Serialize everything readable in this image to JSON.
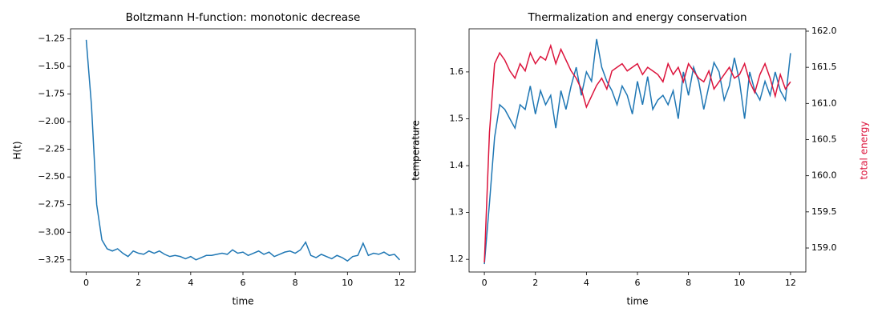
{
  "chart_data": [
    {
      "type": "line",
      "title": "Boltzmann H-function: monotonic decrease",
      "xlabel": "time",
      "ylabel": "H(t)",
      "x": [
        0,
        0.2,
        0.4,
        0.6,
        0.8,
        1,
        1.2,
        1.4,
        1.6,
        1.8,
        2,
        2.2,
        2.4,
        2.6,
        2.8,
        3,
        3.2,
        3.4,
        3.6,
        3.8,
        4,
        4.2,
        4.4,
        4.6,
        4.8,
        5,
        5.2,
        5.4,
        5.6,
        5.8,
        6,
        6.2,
        6.4,
        6.6,
        6.8,
        7,
        7.2,
        7.4,
        7.6,
        7.8,
        8,
        8.2,
        8.4,
        8.6,
        8.8,
        9,
        9.2,
        9.4,
        9.6,
        9.8,
        10,
        10.2,
        10.4,
        10.6,
        10.8,
        11,
        11.2,
        11.4,
        11.6,
        11.8,
        12
      ],
      "series": [
        {
          "name": "H(t)",
          "color": "#1f77b4",
          "values": [
            -1.26,
            -1.85,
            -2.75,
            -3.07,
            -3.15,
            -3.17,
            -3.15,
            -3.19,
            -3.22,
            -3.17,
            -3.19,
            -3.2,
            -3.17,
            -3.19,
            -3.17,
            -3.2,
            -3.22,
            -3.21,
            -3.22,
            -3.24,
            -3.22,
            -3.25,
            -3.23,
            -3.21,
            -3.21,
            -3.2,
            -3.19,
            -3.2,
            -3.16,
            -3.19,
            -3.18,
            -3.21,
            -3.19,
            -3.17,
            -3.2,
            -3.18,
            -3.22,
            -3.2,
            -3.18,
            -3.17,
            -3.19,
            -3.16,
            -3.09,
            -3.21,
            -3.23,
            -3.2,
            -3.22,
            -3.24,
            -3.21,
            -3.23,
            -3.26,
            -3.22,
            -3.21,
            -3.1,
            -3.21,
            -3.19,
            -3.2,
            -3.18,
            -3.21,
            -3.2,
            -3.25
          ]
        }
      ],
      "xlim": [
        -0.6,
        12.6
      ],
      "xticks": [
        0,
        2,
        4,
        6,
        8,
        10,
        12
      ],
      "ylim": [
        -3.36,
        -1.16
      ],
      "yticks": [
        {
          "value": -3.25,
          "label": "−3.25"
        },
        {
          "value": -3,
          "label": "−3.00"
        },
        {
          "value": -2.75,
          "label": "−2.75"
        },
        {
          "value": -2.5,
          "label": "−2.50"
        },
        {
          "value": -2.25,
          "label": "−2.25"
        },
        {
          "value": -2,
          "label": "−2.00"
        },
        {
          "value": -1.75,
          "label": "−1.75"
        },
        {
          "value": -1.5,
          "label": "−1.50"
        },
        {
          "value": -1.25,
          "label": "−1.25"
        }
      ]
    },
    {
      "type": "line",
      "title": "Thermalization and energy conservation",
      "xlabel": "time",
      "ylabel": "temperature",
      "y2label": "total energy",
      "x": [
        0,
        0.2,
        0.4,
        0.6,
        0.8,
        1,
        1.2,
        1.4,
        1.6,
        1.8,
        2,
        2.2,
        2.4,
        2.6,
        2.8,
        3,
        3.2,
        3.4,
        3.6,
        3.8,
        4,
        4.2,
        4.4,
        4.6,
        4.8,
        5,
        5.2,
        5.4,
        5.6,
        5.8,
        6,
        6.2,
        6.4,
        6.6,
        6.8,
        7,
        7.2,
        7.4,
        7.6,
        7.8,
        8,
        8.2,
        8.4,
        8.6,
        8.8,
        9,
        9.2,
        9.4,
        9.6,
        9.8,
        10,
        10.2,
        10.4,
        10.6,
        10.8,
        11,
        11.2,
        11.4,
        11.6,
        11.8,
        12
      ],
      "series": [
        {
          "name": "temperature",
          "color": "#1f77b4",
          "values": [
            1.19,
            1.32,
            1.46,
            1.53,
            1.52,
            1.5,
            1.48,
            1.53,
            1.52,
            1.57,
            1.51,
            1.56,
            1.53,
            1.55,
            1.48,
            1.56,
            1.52,
            1.57,
            1.61,
            1.55,
            1.6,
            1.58,
            1.67,
            1.61,
            1.58,
            1.56,
            1.53,
            1.57,
            1.55,
            1.51,
            1.58,
            1.53,
            1.59,
            1.52,
            1.54,
            1.55,
            1.53,
            1.56,
            1.5,
            1.6,
            1.55,
            1.61,
            1.58,
            1.52,
            1.57,
            1.62,
            1.6,
            1.54,
            1.57,
            1.63,
            1.58,
            1.5,
            1.6,
            1.56,
            1.54,
            1.58,
            1.55,
            1.6,
            1.56,
            1.54,
            1.64
          ]
        },
        {
          "name": "total energy",
          "color": "#dc143c",
          "axis": "y2",
          "values": [
            158.8,
            160.6,
            161.55,
            161.7,
            161.6,
            161.45,
            161.35,
            161.55,
            161.45,
            161.7,
            161.55,
            161.65,
            161.6,
            161.8,
            161.55,
            161.75,
            161.6,
            161.45,
            161.35,
            161.2,
            160.95,
            161.1,
            161.25,
            161.35,
            161.2,
            161.45,
            161.5,
            161.55,
            161.45,
            161.5,
            161.55,
            161.4,
            161.5,
            161.45,
            161.4,
            161.3,
            161.55,
            161.4,
            161.5,
            161.3,
            161.55,
            161.45,
            161.35,
            161.3,
            161.45,
            161.2,
            161.3,
            161.4,
            161.5,
            161.35,
            161.4,
            161.55,
            161.3,
            161.15,
            161.4,
            161.55,
            161.35,
            161.1,
            161.4,
            161.2,
            161.3
          ]
        }
      ],
      "xlim": [
        -0.6,
        12.6
      ],
      "xticks": [
        0,
        2,
        4,
        6,
        8,
        10,
        12
      ],
      "ylim": [
        1.173,
        1.692
      ],
      "yticks": [
        1.2,
        1.3,
        1.4,
        1.5,
        1.6
      ],
      "y2lim": [
        158.668,
        162.033
      ],
      "y2ticks": [
        {
          "value": 159,
          "label": "159.0"
        },
        159.5,
        {
          "value": 160,
          "label": "160.0"
        },
        160.5,
        {
          "value": 161,
          "label": "161.0"
        },
        161.5,
        {
          "value": 162,
          "label": "162.0"
        }
      ]
    }
  ]
}
